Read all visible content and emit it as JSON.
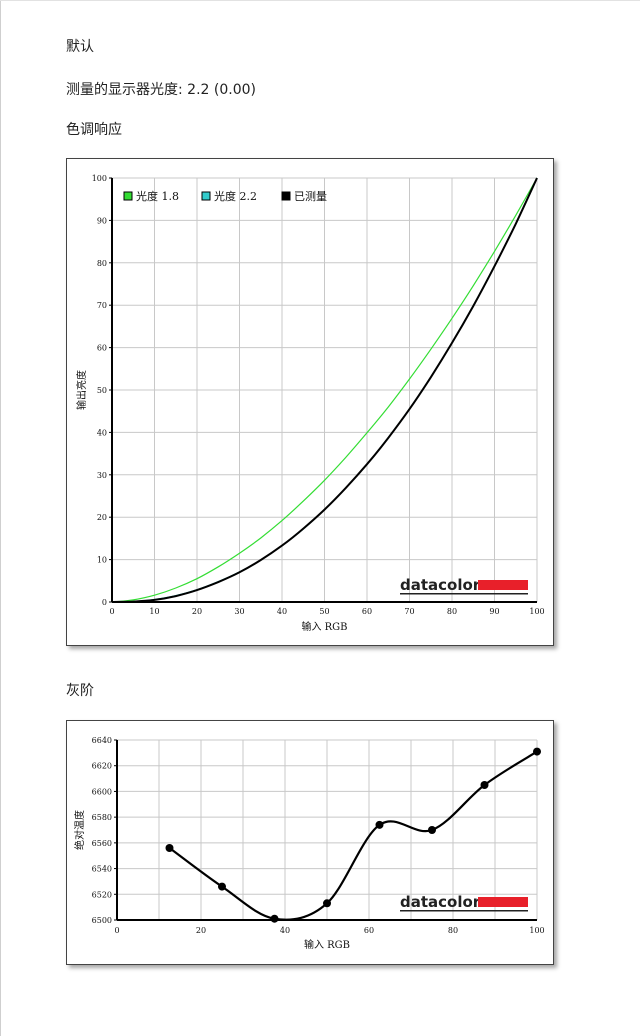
{
  "section_default": {
    "title": "默认",
    "measured_label": "测量的显示器光度:",
    "measured_value": "2.2 (0.00)"
  },
  "section_tone": {
    "title": "色调响应"
  },
  "section_gray": {
    "title": "灰阶"
  },
  "colors": {
    "gamma18": "#33dd33",
    "gamma22": "#33cccc",
    "measured": "#000000",
    "brand_red": "#e8202a"
  },
  "chart_data": [
    {
      "type": "line",
      "title": "",
      "xlabel": "输入 RGB",
      "ylabel": "输出亮度",
      "xlim": [
        0,
        100
      ],
      "ylim": [
        0,
        100
      ],
      "xticks": [
        0,
        10,
        20,
        30,
        40,
        50,
        60,
        70,
        80,
        90,
        100
      ],
      "yticks": [
        0,
        10,
        20,
        30,
        40,
        50,
        60,
        70,
        80,
        90,
        100
      ],
      "grid": true,
      "legend_position": "top-left",
      "logo_text": "datacolor",
      "x": [
        0,
        5,
        10,
        15,
        20,
        25,
        30,
        35,
        40,
        45,
        50,
        55,
        60,
        65,
        70,
        75,
        80,
        85,
        90,
        95,
        100
      ],
      "series": [
        {
          "name": "光度 1.8",
          "color": "#33dd33",
          "values": [
            0,
            0.5,
            1.6,
            3.3,
            5.5,
            8.3,
            11.5,
            15.1,
            19.2,
            23.8,
            28.7,
            34.1,
            39.9,
            46.0,
            52.6,
            59.6,
            66.9,
            74.6,
            82.7,
            91.2,
            100
          ]
        },
        {
          "name": "光度 2.2",
          "color": "#33cccc",
          "values": [
            0,
            0.1,
            0.6,
            1.5,
            2.9,
            4.8,
            7.1,
            9.9,
            13.3,
            17.2,
            21.8,
            26.9,
            32.5,
            38.8,
            45.6,
            53.1,
            61.2,
            69.9,
            79.3,
            89.3,
            100
          ]
        },
        {
          "name": "已测量",
          "color": "#000000",
          "values": [
            0,
            0.1,
            0.5,
            1.4,
            2.8,
            4.7,
            7.0,
            9.9,
            13.3,
            17.3,
            21.8,
            26.9,
            32.5,
            38.7,
            45.5,
            53.0,
            61.1,
            69.8,
            79.2,
            89.2,
            100
          ]
        }
      ]
    },
    {
      "type": "line",
      "title": "",
      "xlabel": "输入 RGB",
      "ylabel": "绝对温度",
      "xlim": [
        0,
        100
      ],
      "ylim": [
        6500,
        6640
      ],
      "xticks": [
        0,
        20,
        40,
        60,
        80,
        100
      ],
      "yticks": [
        6500,
        6520,
        6540,
        6560,
        6580,
        6600,
        6620,
        6640
      ],
      "grid": true,
      "logo_text": "datacolor",
      "x": [
        12.5,
        25,
        37.5,
        50,
        62.5,
        75,
        87.5,
        100
      ],
      "series": [
        {
          "name": "",
          "color": "#000000",
          "values": [
            6556,
            6526,
            6501,
            6513,
            6574,
            6570,
            6605,
            6631
          ]
        }
      ]
    }
  ]
}
